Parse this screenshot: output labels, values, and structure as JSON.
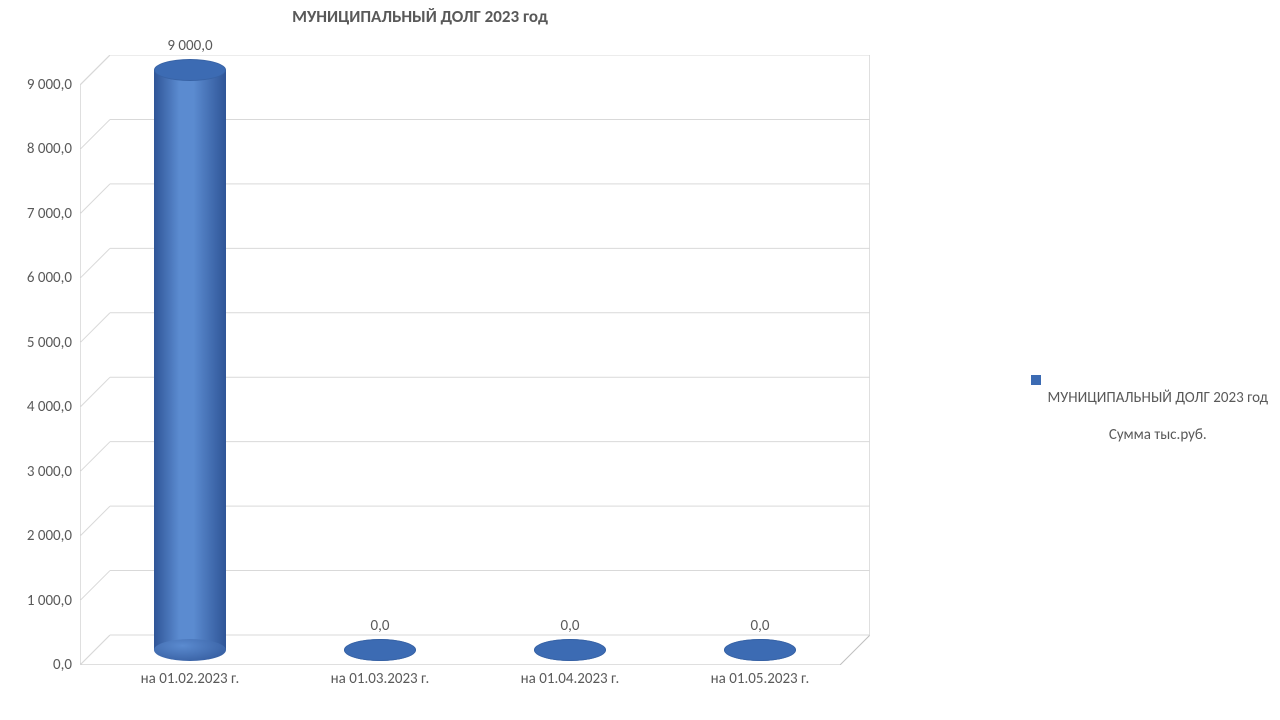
{
  "chart": {
    "type": "3d-cylinder-bar",
    "title": "МУНИЦИПАЛЬНЫЙ ДОЛГ 2023 год",
    "title_fontsize": 17,
    "title_color": "#595959",
    "title_weight": "700",
    "categories": [
      "на 01.02.2023 г.",
      "на 01.03.2023 г.",
      "на 01.04.2023 г.",
      "на 01.05.2023 г."
    ],
    "values": [
      9000.0,
      0.0,
      0.0,
      0.0
    ],
    "data_labels": [
      "9 000,0",
      "0,0",
      "0,0",
      "0,0"
    ],
    "bar_color_light": "#5b8bd0",
    "bar_color_dark": "#2f5597",
    "bar_top_color": "#3c6bb3",
    "ylim": [
      0,
      9000
    ],
    "ytick_step": 1000,
    "ytick_labels": [
      "0,0",
      "1 000,0",
      "2 000,0",
      "3 000,0",
      "4 000,0",
      "5 000,0",
      "6 000,0",
      "7 000,0",
      "8 000,0",
      "9 000,0"
    ],
    "axis_label_fontsize": 15,
    "axis_label_color": "#595959",
    "data_label_fontsize": 15,
    "gridline_color": "#d9d9d9",
    "wall_border_color": "#bfbfbf",
    "background_color": "#ffffff",
    "depth_x": 30,
    "depth_y": 30,
    "plot_front_width": 760,
    "plot_front_height": 580,
    "bar_diameter": 72,
    "ellipse_ry": 11,
    "legend": {
      "swatch_color": "#3c6bb3",
      "line1": "МУНИЦИПАЛЬНЫЙ  ДОЛГ 2023 год",
      "line2": "Сумма тыс.руб.",
      "fontsize": 15,
      "color": "#595959"
    }
  }
}
